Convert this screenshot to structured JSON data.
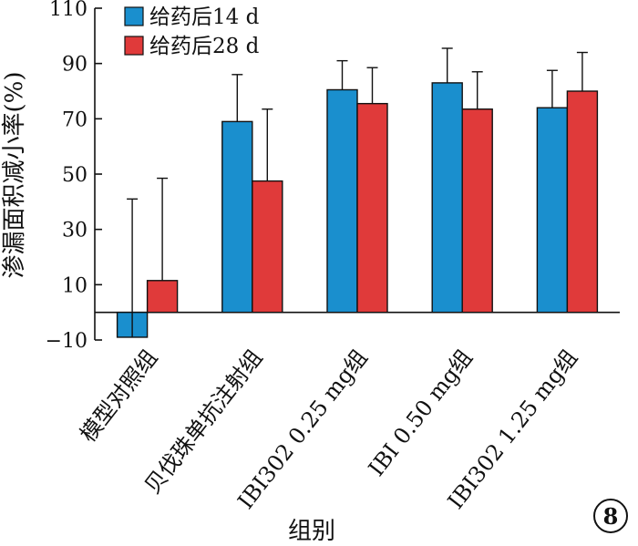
{
  "chart_data": {
    "type": "bar",
    "title": "",
    "xlabel": "组别",
    "ylabel": "渗漏面积减小率(%)",
    "ylim": [
      -10,
      110
    ],
    "yticks": [
      -10,
      10,
      30,
      50,
      70,
      90,
      110
    ],
    "ytick_labels": [
      "−10",
      "10",
      "30",
      "50",
      "70",
      "90",
      "110"
    ],
    "grid": false,
    "legend_position": "top-left",
    "categories": [
      "模型对照组",
      "贝伐珠单抗注射组",
      "IBI302 0.25 mg组",
      "IBI 0.50 mg组",
      "IBI302 1.25 mg组"
    ],
    "series": [
      {
        "name": "给药后14 d",
        "color": "#1a8fce",
        "values": [
          -9,
          69,
          80.5,
          83,
          74
        ],
        "error": [
          50,
          17,
          10.5,
          12.5,
          13.5
        ]
      },
      {
        "name": "给药后28 d",
        "color": "#e03a3a",
        "values": [
          11.5,
          47.5,
          75.5,
          73.5,
          80
        ],
        "error": [
          37,
          26,
          13,
          13.5,
          14
        ]
      }
    ]
  },
  "badge": {
    "label": "8"
  }
}
